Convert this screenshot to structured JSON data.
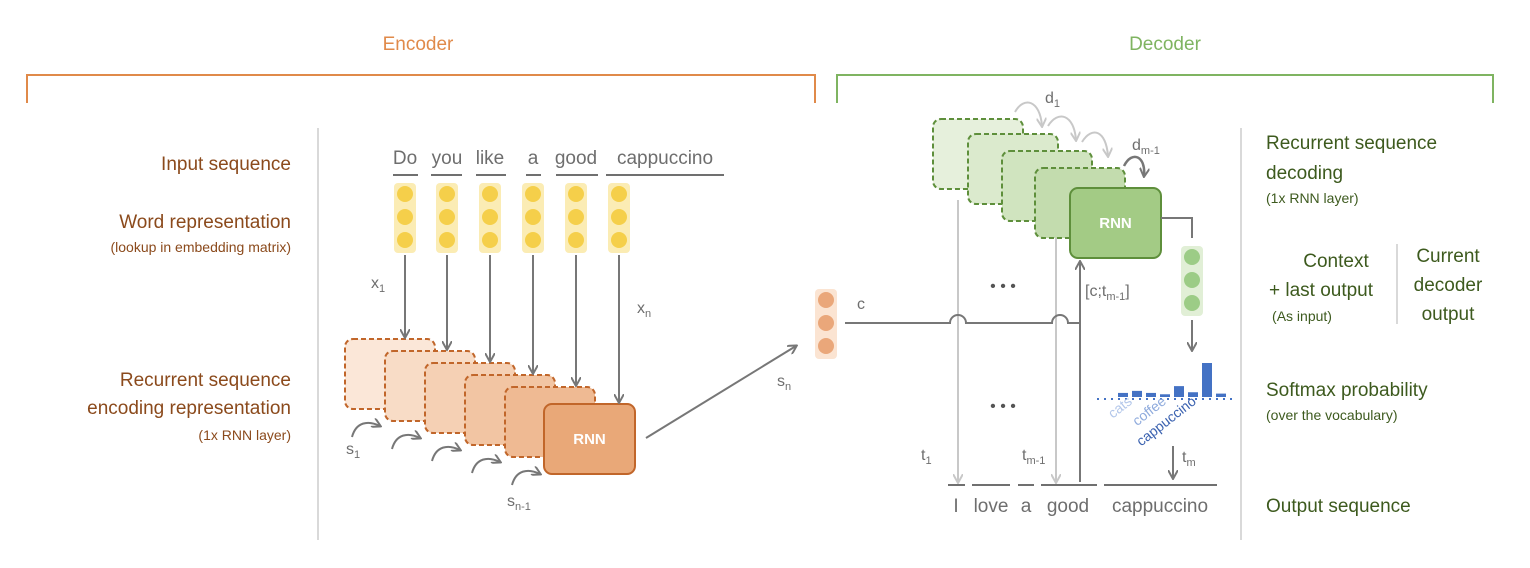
{
  "encoder": {
    "title": "Encoder",
    "labels": {
      "input_sequence": "Input sequence",
      "word_representation": "Word representation",
      "word_representation_note": "(lookup in embedding matrix)",
      "recurrent_line1": "Recurrent sequence",
      "recurrent_line2": "encoding representation",
      "recurrent_note": "(1x RNN layer)"
    },
    "input_words": [
      "Do",
      "you",
      "like",
      "a",
      "good",
      "cappuccino"
    ],
    "rnn_label": "RNN",
    "vars": {
      "x1": "x",
      "x1_sub": "1",
      "xn": "x",
      "xn_sub": "n",
      "s1": "s",
      "s1_sub": "1",
      "sn1": "s",
      "sn1_sub": "n-1",
      "sn": "s",
      "sn_sub": "n",
      "c": "c"
    }
  },
  "decoder": {
    "title": "Decoder",
    "labels": {
      "recurrent_line1": "Recurrent sequence",
      "recurrent_line2": "decoding",
      "recurrent_note": "(1x RNN layer)",
      "context_line1": "Context",
      "context_line2": "+ last output",
      "context_note": "(As input)",
      "current_line1": "Current",
      "current_line2": "decoder",
      "current_line3": "output",
      "softmax": "Softmax probability",
      "softmax_note": "(over the vocabulary)",
      "output_sequence": "Output sequence"
    },
    "rnn_label": "RNN",
    "ellipsis": "• • •",
    "output_words": [
      "I",
      "love",
      "a",
      "good",
      "cappuccino"
    ],
    "vocab_words": [
      "cats",
      "coffee",
      "cappuccino"
    ],
    "softmax_bars": [
      0.12,
      0.18,
      0.12,
      0.08,
      0.32,
      0.14,
      1.0,
      0.1
    ],
    "vars": {
      "d1": "d",
      "d1_sub": "1",
      "dm1": "d",
      "dm1_sub": "m-1",
      "ctx": "[c;t",
      "ctx_sub": "m-1",
      "ctx_close": "]",
      "t1": "t",
      "t1_sub": "1",
      "tm1": "t",
      "tm1_sub": "m-1",
      "tm": "t",
      "tm_sub": "m"
    }
  },
  "colors": {
    "encoder": "#e08a4a",
    "decoder": "#7fb461",
    "encoder_label": "#8b4a1c",
    "decoder_label": "#3d5a1e",
    "softmax_bar": "#4472c4",
    "embedding_dot": "#f5cf4a",
    "encoding_dot": "#eaa77a",
    "decoder_dot": "#9ccc86"
  }
}
